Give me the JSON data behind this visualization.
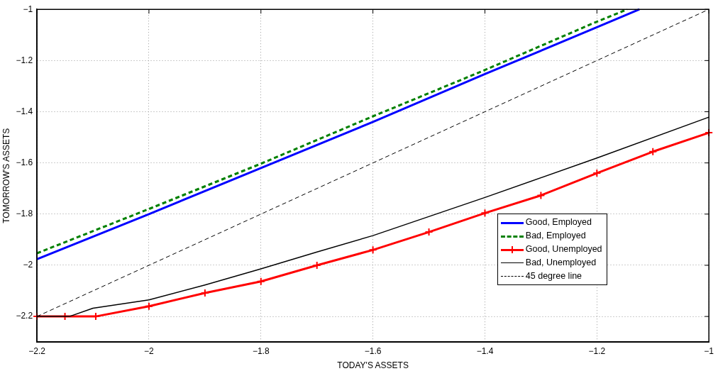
{
  "chart_data": {
    "type": "line",
    "xlabel": "TODAY'S ASSETS",
    "ylabel": "TOMORROW'S ASSETS",
    "xlim": [
      -2.2,
      -1
    ],
    "xticks": [
      -2.2,
      -2,
      -1.8,
      -1.6,
      -1.4,
      -1.2,
      -1
    ],
    "ylim": [
      -2.3,
      -1
    ],
    "yticks": [
      -2.2,
      -2,
      -1.8,
      -1.6,
      -1.4,
      -1.2,
      -1
    ],
    "grid": true,
    "legend": "bottom right",
    "marker": "none",
    "series": [
      {
        "name": "Good, Employed",
        "color": "#0000ff",
        "line_style": "solid",
        "x": [
          -2.2,
          -2,
          -1.8,
          -1.6,
          -1.4,
          -1.2,
          -1.124
        ],
        "values": [
          -1.976,
          -1.8,
          -1.62,
          -1.44,
          -1.253,
          -1.07,
          -1.0
        ]
      },
      {
        "name": "Bad, Employed",
        "color": "#008000",
        "line_style": "dashed",
        "x": [
          -2.2,
          -2,
          -1.8,
          -1.6,
          -1.4,
          -1.2,
          -1.146
        ],
        "values": [
          -1.953,
          -1.78,
          -1.603,
          -1.418,
          -1.237,
          -1.048,
          -1.0
        ]
      },
      {
        "name": "Good, Unemployed",
        "color": "#ff0000",
        "line_style": "solid",
        "marker": "cross",
        "x": [
          -2.2,
          -2.15,
          -2.095,
          -2,
          -1.9,
          -1.8,
          -1.7,
          -1.6,
          -1.5,
          -1.4,
          -1.3,
          -1.2,
          -1.1,
          -1
        ],
        "values": [
          -2.2,
          -2.2,
          -2.2,
          -2.16,
          -2.108,
          -2.063,
          -2.0,
          -1.94,
          -1.87,
          -1.796,
          -1.727,
          -1.64,
          -1.556,
          -1.482
        ]
      },
      {
        "name": "Bad, Unemployed",
        "color": "#000000",
        "line_style": "solid",
        "x": [
          -2.2,
          -2.142,
          -2.1,
          -2,
          -1.9,
          -1.8,
          -1.7,
          -1.6,
          -1.4,
          -1.2,
          -1
        ],
        "values": [
          -2.2,
          -2.2,
          -2.168,
          -2.135,
          -2.077,
          -2.014,
          -1.948,
          -1.884,
          -1.735,
          -1.581,
          -1.421
        ]
      },
      {
        "name": "45 degree line",
        "color": "#000000",
        "line_style": "dashed",
        "x": [
          -2.2,
          -1
        ],
        "values": [
          -2.2,
          -1
        ]
      }
    ]
  }
}
